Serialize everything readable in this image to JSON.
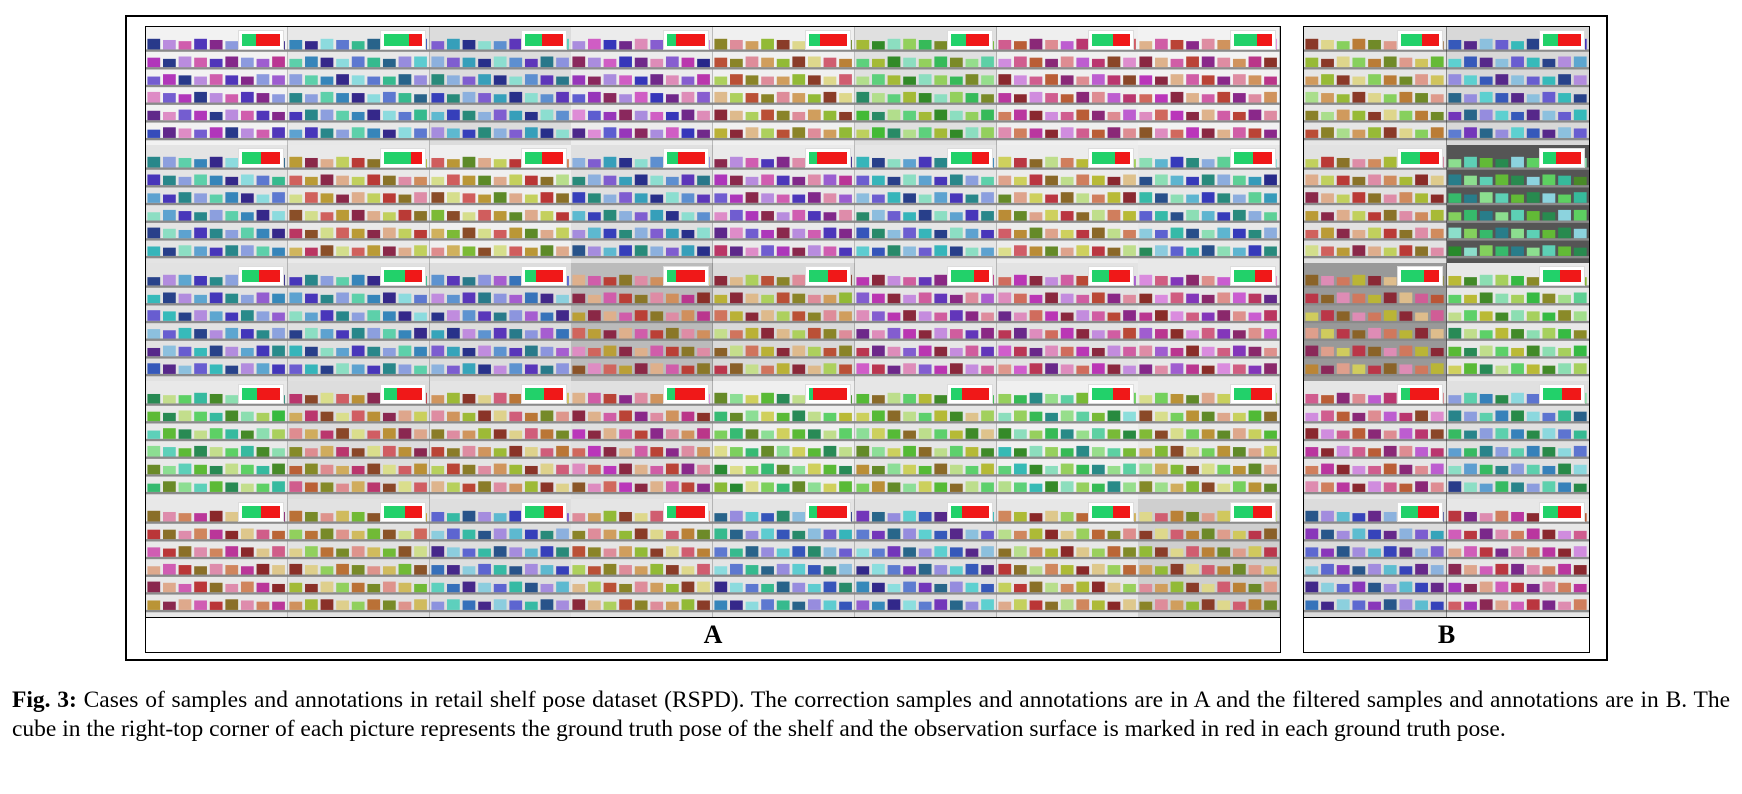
{
  "figure": {
    "panel_a": {
      "label": "A",
      "tiles": [
        {
          "hue": 270,
          "shelf": "#f2f2f2",
          "red": 0.62
        },
        {
          "hue": 200,
          "shelf": "#e8e8e8",
          "red": 0.35
        },
        {
          "hue": 210,
          "shelf": "#dcdcdc",
          "red": 0.55
        },
        {
          "hue": 280,
          "shelf": "#ececec",
          "red": 0.75
        },
        {
          "hue": 30,
          "shelf": "#f0f0f0",
          "red": 0.7
        },
        {
          "hue": 110,
          "shelf": "#e0e0e0",
          "red": 0.6
        },
        {
          "hue": 330,
          "shelf": "#efefef",
          "red": 0.45
        },
        {
          "hue": 340,
          "shelf": "#f2f2f2",
          "red": 0.4
        },
        {
          "hue": 200,
          "shelf": "#e4e4e4",
          "red": 0.5
        },
        {
          "hue": 20,
          "shelf": "#e9e9e9",
          "red": 0.3
        },
        {
          "hue": 40,
          "shelf": "#efefef",
          "red": 0.55
        },
        {
          "hue": 210,
          "shelf": "#e0e0e0",
          "red": 0.7
        },
        {
          "hue": 290,
          "shelf": "#eaeaea",
          "red": 0.8
        },
        {
          "hue": 200,
          "shelf": "#e6e6e6",
          "red": 0.45
        },
        {
          "hue": 35,
          "shelf": "#ececec",
          "red": 0.4
        },
        {
          "hue": 190,
          "shelf": "#e8e8e8",
          "red": 0.5
        },
        {
          "hue": 220,
          "shelf": "#e2e2e2",
          "red": 0.55
        },
        {
          "hue": 200,
          "shelf": "#e0e0e0",
          "red": 0.45
        },
        {
          "hue": 230,
          "shelf": "#dddddd",
          "red": 0.7
        },
        {
          "hue": 0,
          "shelf": "#bbbbbb",
          "red": 0.75
        },
        {
          "hue": 30,
          "shelf": "#d9d9d9",
          "red": 0.5
        },
        {
          "hue": 300,
          "shelf": "#e6e6e6",
          "red": 0.4
        },
        {
          "hue": 320,
          "shelf": "#e3e3e3",
          "red": 0.55
        },
        {
          "hue": 315,
          "shelf": "#e8e8e8",
          "red": 0.45
        },
        {
          "hue": 120,
          "shelf": "#e9e9e9",
          "red": 0.6
        },
        {
          "hue": 15,
          "shelf": "#dddddd",
          "red": 0.65
        },
        {
          "hue": 25,
          "shelf": "#e4e4e4",
          "red": 0.5
        },
        {
          "hue": 340,
          "shelf": "#e0e0e0",
          "red": 0.8
        },
        {
          "hue": 100,
          "shelf": "#efefef",
          "red": 0.9
        },
        {
          "hue": 80,
          "shelf": "#e6e6e6",
          "red": 0.7
        },
        {
          "hue": 130,
          "shelf": "#f0f0f0",
          "red": 0.45
        },
        {
          "hue": 60,
          "shelf": "#e9e9e9",
          "red": 0.55
        },
        {
          "hue": 355,
          "shelf": "#e8e8e8",
          "red": 0.5
        },
        {
          "hue": 45,
          "shelf": "#e2e2e2",
          "red": 0.45
        },
        {
          "hue": 210,
          "shelf": "#dedede",
          "red": 0.5
        },
        {
          "hue": 30,
          "shelf": "#e5e5e5",
          "red": 0.75
        },
        {
          "hue": 200,
          "shelf": "#e4e4e4",
          "red": 0.8
        },
        {
          "hue": 220,
          "shelf": "#e1e1e1",
          "red": 0.7
        },
        {
          "hue": 40,
          "shelf": "#e7e7e7",
          "red": 0.45
        },
        {
          "hue": 30,
          "shelf": "#cfcfcf",
          "red": 0.5
        }
      ]
    },
    "panel_b": {
      "label": "B",
      "tiles": [
        {
          "hue": 50,
          "shelf": "#e6e6e6",
          "red": 0.45
        },
        {
          "hue": 220,
          "shelf": "#d8d8d8",
          "red": 0.6
        },
        {
          "hue": 20,
          "shelf": "#e2e2e2",
          "red": 0.5
        },
        {
          "hue": 140,
          "shelf": "#555555",
          "red": 0.65
        },
        {
          "hue": 10,
          "shelf": "#999999",
          "red": 0.4
        },
        {
          "hue": 100,
          "shelf": "#e8e8e8",
          "red": 0.55
        },
        {
          "hue": 330,
          "shelf": "#e6e6e6",
          "red": 0.75
        },
        {
          "hue": 180,
          "shelf": "#e0e0e0",
          "red": 0.5
        },
        {
          "hue": 230,
          "shelf": "#dcdcdc",
          "red": 0.55
        },
        {
          "hue": 330,
          "shelf": "#e7e7e7",
          "red": 0.6
        }
      ]
    }
  },
  "caption": {
    "lead": "Fig. 3:",
    "text": "Cases of samples and annotations in retail shelf pose dataset (RSPD). The correction samples and annotations are in A and the filtered samples and annotations are in B. The cube in the right-top corner of each picture represents the ground truth pose of the shelf and the observation surface is marked in red in each ground truth pose."
  }
}
